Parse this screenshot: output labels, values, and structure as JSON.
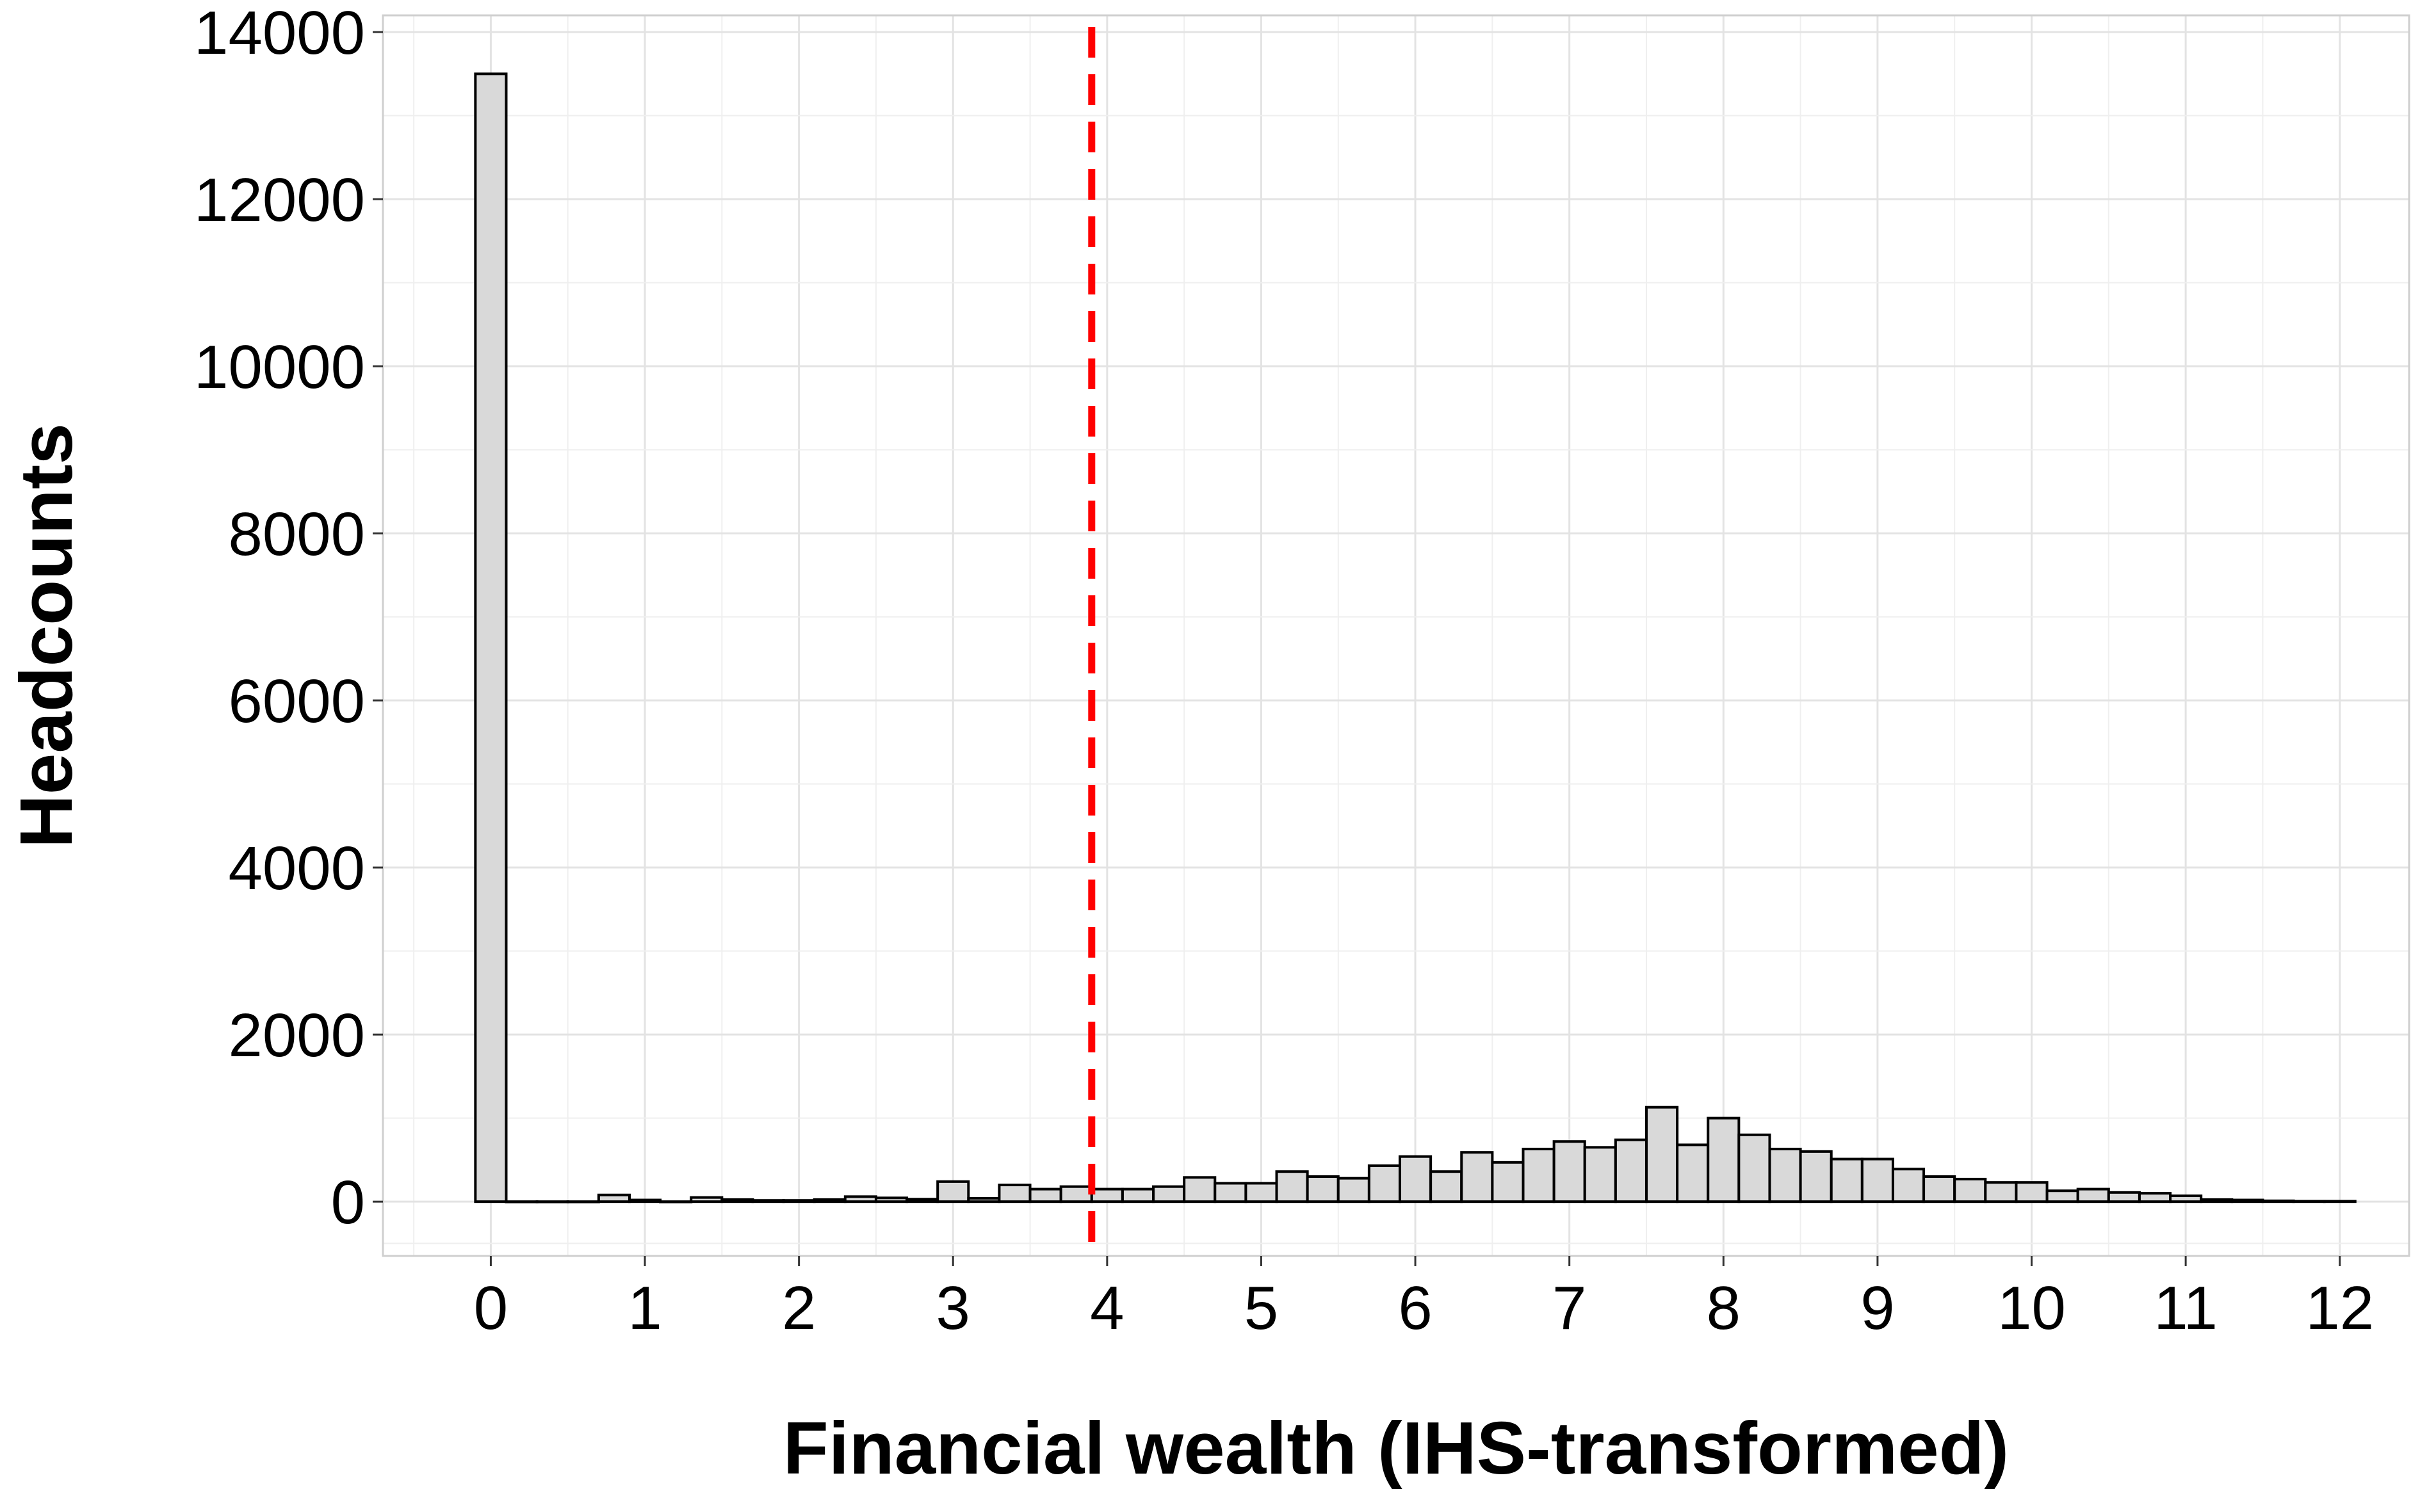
{
  "chart_data": {
    "type": "bar",
    "title": "",
    "xlabel": "Financial wealth (IHS-transformed)",
    "ylabel": "Headcounts",
    "xlim": [
      -0.7,
      12.45
    ],
    "ylim": [
      -650,
      14200
    ],
    "x_ticks": [
      0,
      1,
      2,
      3,
      4,
      5,
      6,
      7,
      8,
      9,
      10,
      11,
      12
    ],
    "y_ticks": [
      0,
      2000,
      4000,
      6000,
      8000,
      10000,
      12000,
      14000
    ],
    "x_tick_labels": [
      "0",
      "1",
      "2",
      "3",
      "4",
      "5",
      "6",
      "7",
      "8",
      "9",
      "10",
      "11",
      "12"
    ],
    "y_tick_labels": [
      "0",
      "2000",
      "4000",
      "6000",
      "8000",
      "10000",
      "12000",
      "14000"
    ],
    "grid": true,
    "legend": "none",
    "bin_width": 0.2,
    "bin_centers": [
      0.0,
      0.2,
      0.4,
      0.6,
      0.8,
      1.0,
      1.2,
      1.4,
      1.6,
      1.8,
      2.0,
      2.2,
      2.4,
      2.6,
      2.8,
      3.0,
      3.2,
      3.4,
      3.6,
      3.8,
      4.0,
      4.2,
      4.4,
      4.6,
      4.8,
      5.0,
      5.2,
      5.4,
      5.6,
      5.8,
      6.0,
      6.2,
      6.4,
      6.6,
      6.8,
      7.0,
      7.2,
      7.4,
      7.6,
      7.8,
      8.0,
      8.2,
      8.4,
      8.6,
      8.8,
      9.0,
      9.2,
      9.4,
      9.6,
      9.8,
      10.0,
      10.2,
      10.4,
      10.6,
      10.8,
      11.0,
      11.2,
      11.4,
      11.6,
      11.8,
      12.0
    ],
    "values": [
      13500,
      0,
      0,
      0,
      80,
      20,
      0,
      50,
      25,
      15,
      15,
      25,
      60,
      45,
      30,
      240,
      40,
      200,
      150,
      180,
      150,
      150,
      180,
      290,
      220,
      220,
      360,
      300,
      280,
      430,
      540,
      360,
      590,
      470,
      630,
      720,
      650,
      740,
      1130,
      680,
      1000,
      800,
      630,
      600,
      510,
      510,
      390,
      300,
      270,
      230,
      230,
      130,
      150,
      110,
      100,
      70,
      25,
      20,
      10,
      5,
      5
    ],
    "fill_color": "#d9d9d9",
    "edge_color": "#000000",
    "reference_line": {
      "x": 3.9,
      "style": "dashed",
      "color": "#ff0000"
    }
  }
}
